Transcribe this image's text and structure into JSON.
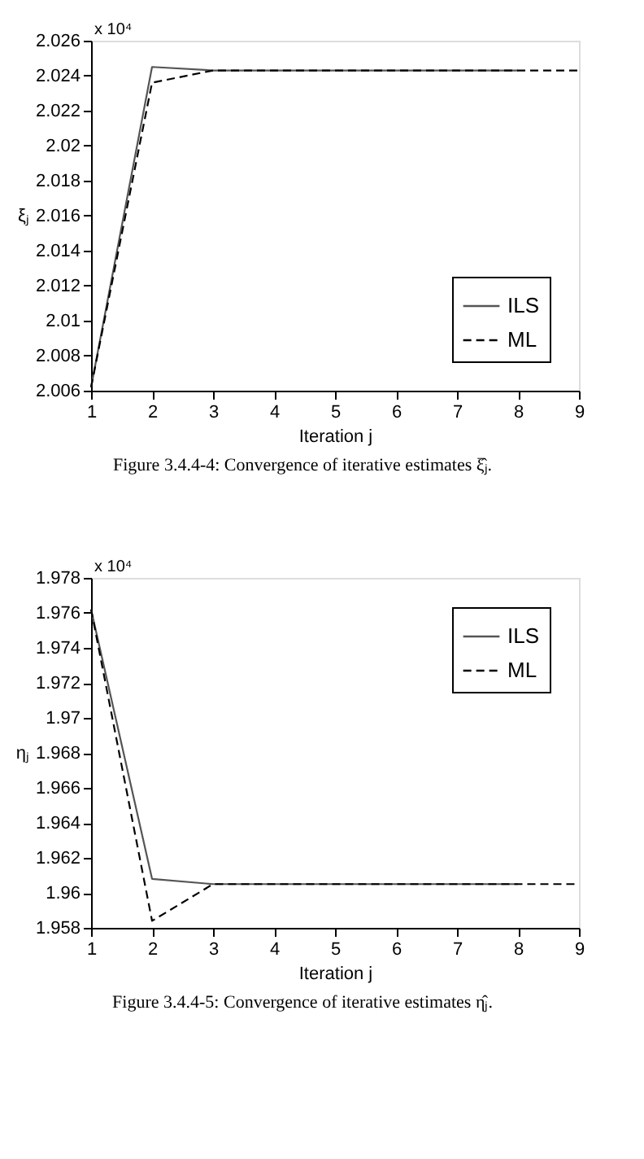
{
  "chart_data": [
    {
      "type": "line",
      "xlabel": "Iteration j",
      "ylabel": "ξⱼ",
      "annotations": [
        "x 10⁴",
        "Figure 3.4.4-4: Convergence of iterative estimates ξ̂ⱼ."
      ],
      "xlim": [
        1,
        9
      ],
      "xticks": [
        1,
        2,
        3,
        4,
        5,
        6,
        7,
        8,
        9
      ],
      "ylim": [
        2.006,
        2.026
      ],
      "yticks": [
        2.006,
        2.008,
        2.01,
        2.012,
        2.014,
        2.016,
        2.018,
        2.02,
        2.022,
        2.024,
        2.026
      ],
      "legend": "bottom right",
      "grid": false,
      "series": [
        {
          "name": "ILS",
          "color": "#555555",
          "line_style": "solid",
          "x": [
            1,
            2,
            3,
            4,
            5,
            6,
            7,
            8
          ],
          "values": [
            2.0062,
            2.0245,
            2.0243,
            2.0243,
            2.0243,
            2.0243,
            2.0243,
            2.0243
          ]
        },
        {
          "name": "ML",
          "color": "#000000",
          "line_style": "dashed",
          "x": [
            1,
            2,
            3,
            4,
            5,
            6,
            7,
            8,
            9
          ],
          "values": [
            2.0062,
            2.0236,
            2.0243,
            2.0243,
            2.0243,
            2.0243,
            2.0243,
            2.0243,
            2.0243
          ]
        }
      ]
    },
    {
      "type": "line",
      "xlabel": "Iteration j",
      "ylabel": "ηⱼ",
      "annotations": [
        "x 10⁴",
        "Figure 3.4.4-5: Convergence of iterative estimates η̂ⱼ."
      ],
      "xlim": [
        1,
        9
      ],
      "xticks": [
        1,
        2,
        3,
        4,
        5,
        6,
        7,
        8,
        9
      ],
      "ylim": [
        1.958,
        1.978
      ],
      "yticks": [
        1.958,
        1.96,
        1.962,
        1.964,
        1.966,
        1.968,
        1.97,
        1.972,
        1.974,
        1.976,
        1.978
      ],
      "legend": "top right",
      "grid": false,
      "series": [
        {
          "name": "ILS",
          "color": "#555555",
          "line_style": "solid",
          "x": [
            1,
            2,
            3,
            4,
            5,
            6,
            7,
            8
          ],
          "values": [
            1.9762,
            1.9608,
            1.9605,
            1.9605,
            1.9605,
            1.9605,
            1.9605,
            1.9605
          ]
        },
        {
          "name": "ML",
          "color": "#000000",
          "line_style": "dashed",
          "x": [
            1,
            2,
            3,
            4,
            5,
            6,
            7,
            8,
            9
          ],
          "values": [
            1.9762,
            1.9584,
            1.9605,
            1.9605,
            1.9605,
            1.9605,
            1.9605,
            1.9605,
            1.9605
          ]
        }
      ]
    }
  ]
}
